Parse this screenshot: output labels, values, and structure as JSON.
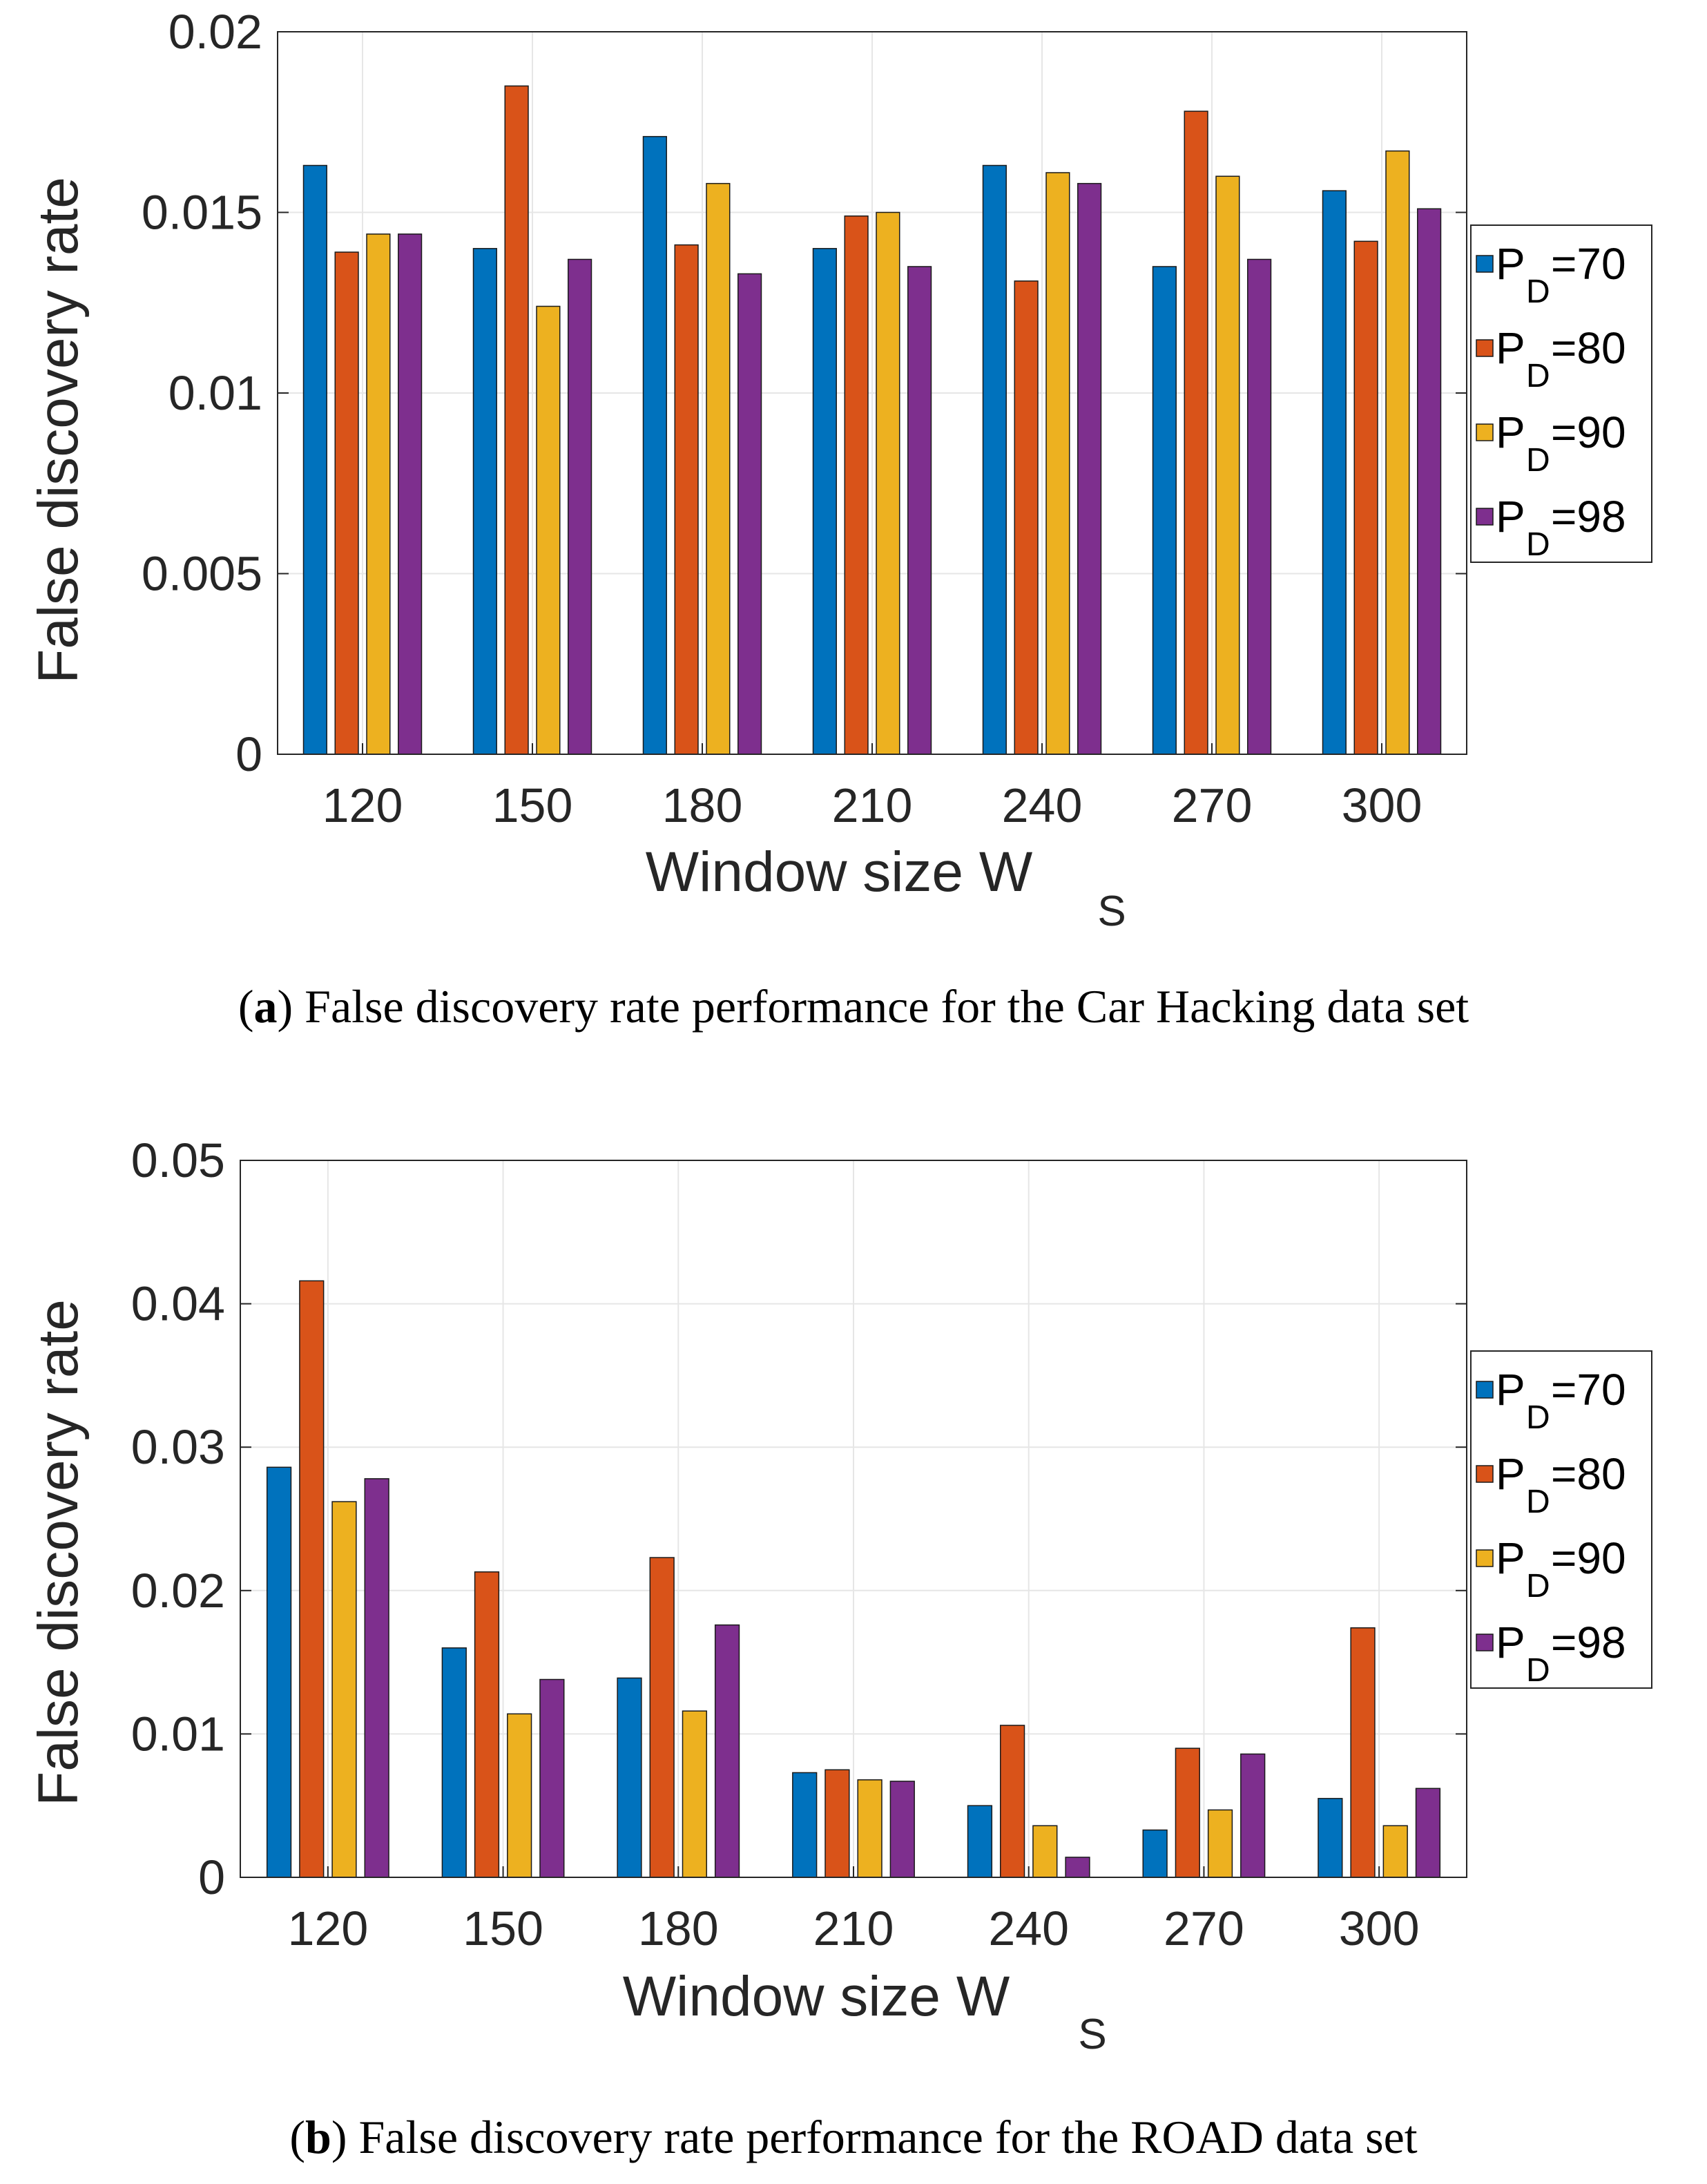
{
  "colors": {
    "P70": "#0072BD",
    "P80": "#D95319",
    "P90": "#EDB120",
    "P98": "#7E2F8E"
  },
  "chart_data": [
    {
      "type": "bar",
      "title": "",
      "xlabel": "Window size W",
      "xlabel_sub": "S",
      "ylabel": "False discovery rate",
      "categories": [
        "120",
        "150",
        "180",
        "210",
        "240",
        "270",
        "300"
      ],
      "ylim": [
        0,
        0.02
      ],
      "yticks": [
        0,
        0.005,
        0.01,
        0.015,
        0.02
      ],
      "ytick_labels": [
        "0",
        "0.005",
        "0.01",
        "0.015",
        "0.02"
      ],
      "grid": true,
      "legend_position": "right",
      "series": [
        {
          "name": "P_D=70",
          "legend_main": "P",
          "legend_sub": "D",
          "legend_tail": "=70",
          "color_key": "P70",
          "values": [
            0.0163,
            0.014,
            0.0171,
            0.014,
            0.0163,
            0.0135,
            0.0156
          ]
        },
        {
          "name": "P_D=80",
          "legend_main": "P",
          "legend_sub": "D",
          "legend_tail": "=80",
          "color_key": "P80",
          "values": [
            0.0139,
            0.0185,
            0.0141,
            0.0149,
            0.0131,
            0.0178,
            0.0142
          ]
        },
        {
          "name": "P_D=90",
          "legend_main": "P",
          "legend_sub": "D",
          "legend_tail": "=90",
          "color_key": "P90",
          "values": [
            0.0144,
            0.0124,
            0.0158,
            0.015,
            0.0161,
            0.016,
            0.0167
          ]
        },
        {
          "name": "P_D=98",
          "legend_main": "P",
          "legend_sub": "D",
          "legend_tail": "=98",
          "color_key": "P98",
          "values": [
            0.0144,
            0.0137,
            0.0133,
            0.0135,
            0.0158,
            0.0137,
            0.0151
          ]
        }
      ]
    },
    {
      "type": "bar",
      "title": "",
      "xlabel": "Window size W",
      "xlabel_sub": "S",
      "ylabel": "False discovery rate",
      "categories": [
        "120",
        "150",
        "180",
        "210",
        "240",
        "270",
        "300"
      ],
      "ylim": [
        0,
        0.05
      ],
      "yticks": [
        0,
        0.01,
        0.02,
        0.03,
        0.04,
        0.05
      ],
      "ytick_labels": [
        "0",
        "0.01",
        "0.02",
        "0.03",
        "0.04",
        "0.05"
      ],
      "grid": true,
      "legend_position": "right",
      "series": [
        {
          "name": "P_D=70",
          "legend_main": "P",
          "legend_sub": "D",
          "legend_tail": "=70",
          "color_key": "P70",
          "values": [
            0.0286,
            0.016,
            0.0139,
            0.0073,
            0.005,
            0.0033,
            0.0055
          ]
        },
        {
          "name": "P_D=80",
          "legend_main": "P",
          "legend_sub": "D",
          "legend_tail": "=80",
          "color_key": "P80",
          "values": [
            0.0416,
            0.0213,
            0.0223,
            0.0075,
            0.0106,
            0.009,
            0.0174
          ]
        },
        {
          "name": "P_D=90",
          "legend_main": "P",
          "legend_sub": "D",
          "legend_tail": "=90",
          "color_key": "P90",
          "values": [
            0.0262,
            0.0114,
            0.0116,
            0.0068,
            0.0036,
            0.0047,
            0.0036
          ]
        },
        {
          "name": "P_D=98",
          "legend_main": "P",
          "legend_sub": "D",
          "legend_tail": "=98",
          "color_key": "P98",
          "values": [
            0.0278,
            0.0138,
            0.0176,
            0.0067,
            0.0014,
            0.0086,
            0.0062
          ]
        }
      ]
    }
  ],
  "captions": [
    {
      "label": "a",
      "text": "False discovery rate performance for the Car Hacking data set"
    },
    {
      "label": "b",
      "text": "False discovery rate performance for the ROAD data set"
    }
  ]
}
